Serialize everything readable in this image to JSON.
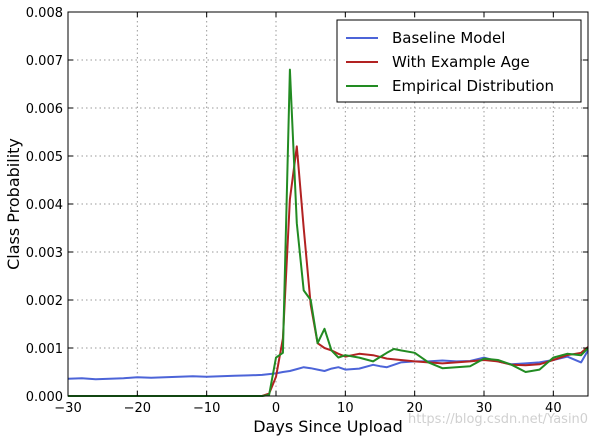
{
  "chart_data": {
    "type": "line",
    "title": "",
    "xlabel": "Days Since Upload",
    "ylabel": "Class Probability",
    "xlim": [
      -30,
      45
    ],
    "ylim": [
      0,
      0.008
    ],
    "xticks": [
      -30,
      -20,
      -10,
      0,
      10,
      20,
      30,
      40
    ],
    "xtick_labels": [
      "−30",
      "−20",
      "−10",
      "0",
      "10",
      "20",
      "30",
      "40"
    ],
    "yticks": [
      0,
      0.001,
      0.002,
      0.003,
      0.004,
      0.005,
      0.006,
      0.007,
      0.008
    ],
    "ytick_labels": [
      "0.000",
      "0.001",
      "0.002",
      "0.003",
      "0.004",
      "0.005",
      "0.006",
      "0.007",
      "0.008"
    ],
    "grid": true,
    "legend_position": "top-right",
    "series": [
      {
        "name": "Baseline Model",
        "color": "#4c64d8",
        "x": [
          -30,
          -28,
          -26,
          -24,
          -22,
          -20,
          -18,
          -16,
          -14,
          -12,
          -10,
          -8,
          -6,
          -4,
          -2,
          0,
          1,
          2,
          3,
          4,
          5,
          6,
          7,
          8,
          9,
          10,
          12,
          14,
          15,
          16,
          18,
          20,
          22,
          24,
          26,
          28,
          30,
          32,
          34,
          36,
          38,
          40,
          42,
          44,
          45
        ],
        "y": [
          0.00036,
          0.00037,
          0.00035,
          0.00036,
          0.00037,
          0.00039,
          0.00038,
          0.00039,
          0.0004,
          0.00041,
          0.0004,
          0.00041,
          0.00042,
          0.00043,
          0.00044,
          0.00047,
          0.0005,
          0.00052,
          0.00056,
          0.0006,
          0.00058,
          0.00055,
          0.00052,
          0.00057,
          0.0006,
          0.00055,
          0.00057,
          0.00065,
          0.00062,
          0.0006,
          0.0007,
          0.00072,
          0.00072,
          0.00074,
          0.00072,
          0.00073,
          0.0008,
          0.00072,
          0.00066,
          0.00068,
          0.0007,
          0.00075,
          0.00082,
          0.0007,
          0.00095
        ]
      },
      {
        "name": "With Example Age",
        "color": "#b22222",
        "x": [
          -30,
          -20,
          -10,
          -2,
          -1,
          0,
          1,
          2,
          3,
          4,
          5,
          6,
          7,
          8,
          9,
          10,
          12,
          14,
          16,
          18,
          20,
          22,
          24,
          26,
          28,
          30,
          32,
          34,
          36,
          38,
          40,
          42,
          44,
          45
        ],
        "y": [
          0,
          0,
          0,
          0,
          5e-05,
          0.0004,
          0.0012,
          0.0041,
          0.0052,
          0.0035,
          0.0019,
          0.0011,
          0.001,
          0.00095,
          0.00088,
          0.00082,
          0.00088,
          0.00085,
          0.00078,
          0.00075,
          0.00072,
          0.0007,
          0.00068,
          0.0007,
          0.00072,
          0.00075,
          0.00072,
          0.00065,
          0.00064,
          0.00066,
          0.00075,
          0.00085,
          0.0009,
          0.00102
        ]
      },
      {
        "name": "Empirical Distribution",
        "color": "#228b22",
        "x": [
          -30,
          -20,
          -10,
          -2,
          -1,
          0,
          1,
          2,
          3,
          4,
          5,
          6,
          7,
          8,
          9,
          10,
          12,
          14,
          16,
          17,
          18,
          20,
          22,
          24,
          26,
          28,
          30,
          32,
          34,
          36,
          38,
          40,
          42,
          44,
          45
        ],
        "y": [
          0,
          0,
          0,
          0,
          2e-05,
          0.0008,
          0.0009,
          0.0068,
          0.0036,
          0.0022,
          0.002,
          0.0011,
          0.0014,
          0.00095,
          0.0008,
          0.00085,
          0.0008,
          0.00072,
          0.0009,
          0.00098,
          0.00095,
          0.0009,
          0.0007,
          0.00058,
          0.0006,
          0.00062,
          0.00078,
          0.00075,
          0.00065,
          0.0005,
          0.00055,
          0.0008,
          0.00088,
          0.00085,
          0.001
        ]
      }
    ]
  },
  "watermark": "https://blog.csdn.net/Yasin0"
}
